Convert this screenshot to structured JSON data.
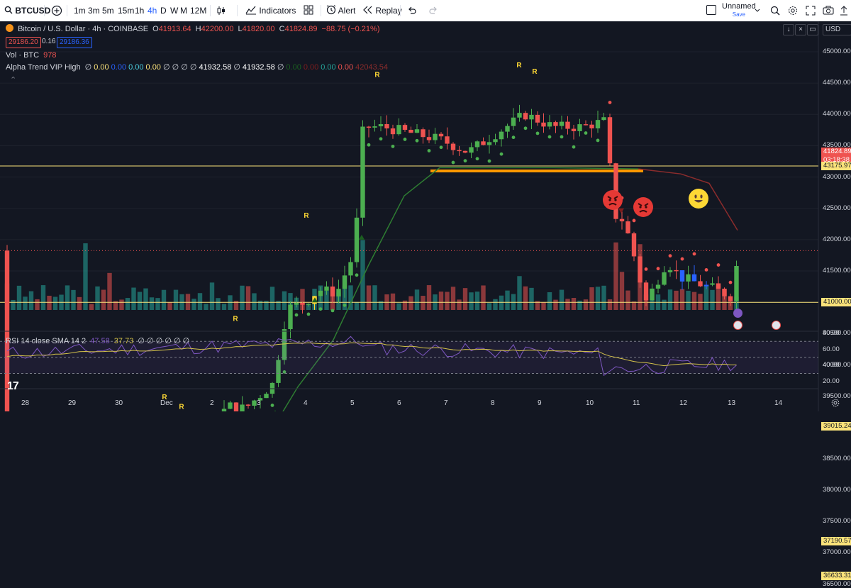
{
  "toolbar": {
    "symbol": "BTCUSD",
    "intervals": [
      "1m",
      "3m",
      "5m",
      "15m",
      "1h",
      "4h",
      "D",
      "W",
      "M",
      "12M"
    ],
    "active_interval": "4h",
    "indicators_label": "Indicators",
    "alert_label": "Alert",
    "replay_label": "Replay",
    "layout_name": "Unnamed",
    "layout_status": "Save",
    "currency": "USD"
  },
  "legend": {
    "title": "Bitcoin / U.S. Dollar · 4h · COINBASE",
    "o_label": "O",
    "o_value": "41913.64",
    "h_label": "H",
    "h_value": "42200.00",
    "l_label": "L",
    "l_value": "41820.00",
    "c_label": "C",
    "c_value": "41824.89",
    "change": "−88.75 (−0.21%)",
    "bid": "29186.20",
    "spread": "0.16",
    "ask": "29186.36",
    "vol_label": "Vol · BTC",
    "vol_value": "978",
    "alpha_label": "Alpha Trend VIP High",
    "alpha_values": [
      {
        "text": "∅",
        "color": "#d1d4dc"
      },
      {
        "text": "0.00",
        "color": "#fbe37a"
      },
      {
        "text": "0.00",
        "color": "#2962ff"
      },
      {
        "text": "0.00",
        "color": "#4dd0e1"
      },
      {
        "text": "0.00",
        "color": "#fbe37a"
      },
      {
        "text": "∅ ∅ ∅ ∅",
        "color": "#d1d4dc"
      },
      {
        "text": "41932.58",
        "color": "#ffffff"
      },
      {
        "text": "∅",
        "color": "#d1d4dc"
      },
      {
        "text": "41932.58",
        "color": "#ffffff"
      },
      {
        "text": "∅",
        "color": "#d1d4dc"
      },
      {
        "text": "0.00",
        "color": "#1b5e20"
      },
      {
        "text": "0.00",
        "color": "#7f1d1d"
      },
      {
        "text": "0.00",
        "color": "#26a69a"
      },
      {
        "text": "0.00",
        "color": "#ef5350"
      },
      {
        "text": "42043.54",
        "color": "#8b2c2c"
      }
    ],
    "rsi_label": "RSI 14 close SMA 14 2",
    "rsi_value": "47.58",
    "rsi_sma": "37.73",
    "rsi_tail": "∅ ∅ ∅ ∅ ∅ ∅"
  },
  "price_axis": {
    "ticks": [
      "45000.00",
      "44500.00",
      "44000.00",
      "43500.00",
      "43000.00",
      "42500.00",
      "42000.00",
      "41500.00",
      "41000.00",
      "40500.00",
      "40000.00",
      "39500.00",
      "39000.00",
      "38500.00",
      "38000.00",
      "37500.00",
      "37000.00",
      "36500.00"
    ],
    "last_price": "41824.89",
    "countdown": "03:18:38",
    "hlines": [
      "43175.97",
      "41000.00",
      "39015.24",
      "37190.57",
      "36633.31"
    ]
  },
  "rsi_axis": {
    "ticks": [
      "80.00",
      "60.00",
      "40.00",
      "20.00"
    ]
  },
  "time_axis": {
    "labels": [
      "28",
      "29",
      "30",
      "Dec",
      "2",
      "3",
      "4",
      "5",
      "6",
      "7",
      "8",
      "9",
      "10",
      "11",
      "12",
      "13",
      "14"
    ]
  },
  "signal_label": "R",
  "colors": {
    "up": "#26a69a",
    "up_bright": "#4caf50",
    "down": "#ef5350",
    "hline": "#fbe37a",
    "trend": "#2e7d32",
    "rsi": "#7e57c2",
    "rsi_sma": "#d4c24a"
  },
  "icons": [
    "search-icon",
    "plus-circle-icon",
    "candle-type-icon",
    "indicators-icon",
    "templates-icon",
    "alert-icon",
    "replay-icon",
    "undo-icon",
    "redo-icon",
    "screener-icon",
    "settings-icon",
    "fullscreen-icon",
    "camera-icon",
    "publish-icon"
  ]
}
